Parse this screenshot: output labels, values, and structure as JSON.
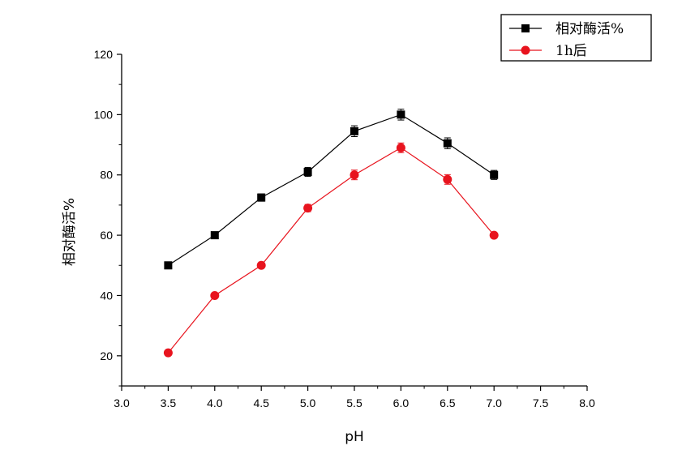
{
  "chart_data": {
    "type": "line",
    "title": "",
    "xlabel": "pH",
    "ylabel": "相对酶活%",
    "xlim": [
      3.0,
      8.0
    ],
    "ylim": [
      10,
      120
    ],
    "xticks": [
      3.0,
      3.5,
      4.0,
      4.5,
      5.0,
      5.5,
      6.0,
      6.5,
      7.0,
      7.5,
      8.0
    ],
    "xtick_labels": [
      "3.0",
      "3.5",
      "4.0",
      "4.5",
      "5.0",
      "5.5",
      "6.0",
      "6.5",
      "7.0",
      "7.5",
      "8.0"
    ],
    "yticks": [
      20,
      40,
      60,
      80,
      100,
      120
    ],
    "ytick_labels": [
      "20",
      "40",
      "60",
      "80",
      "100",
      "120"
    ],
    "grid": false,
    "legend_position": "top-right",
    "x": [
      3.5,
      4.0,
      4.5,
      5.0,
      5.5,
      6.0,
      6.5,
      7.0
    ],
    "series": [
      {
        "name": "相对酶活%",
        "marker": "square",
        "color": "#000000",
        "values": [
          50,
          60,
          72.5,
          81,
          94.5,
          100,
          90.5,
          80
        ],
        "errors": [
          0.8,
          0.8,
          1.2,
          1.5,
          1.8,
          1.8,
          1.8,
          1.5
        ]
      },
      {
        "name": "1h后",
        "marker": "circle",
        "color": "#e8141e",
        "values": [
          21,
          40,
          50,
          69,
          80,
          89,
          78.5,
          60
        ],
        "errors": [
          0.8,
          0.8,
          0.8,
          1.2,
          1.6,
          1.6,
          1.6,
          0.8
        ]
      }
    ]
  }
}
